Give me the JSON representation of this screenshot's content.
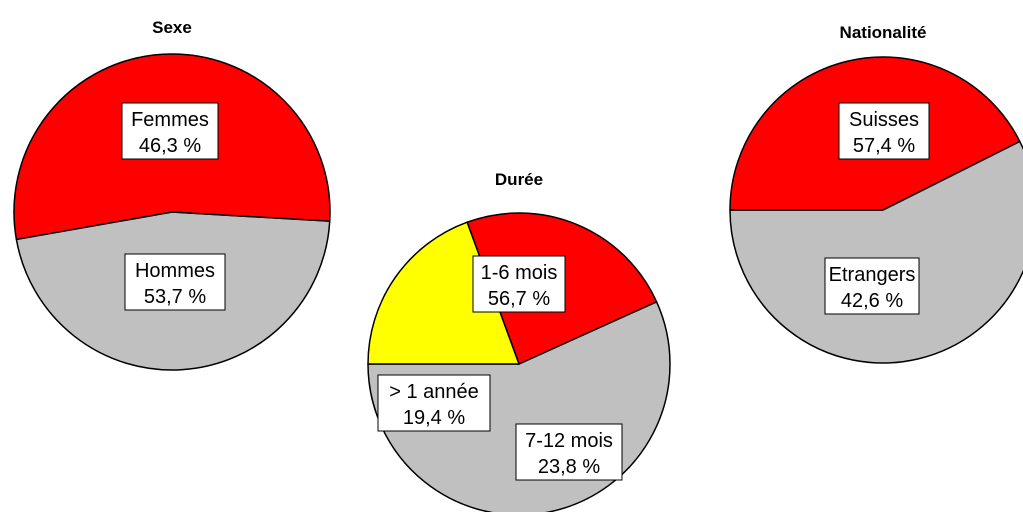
{
  "chart_data": [
    {
      "type": "pie",
      "title": "Sexe",
      "slices": [
        {
          "label": "Femmes",
          "value_text": "46,3 %",
          "value": 46.3,
          "color": "#c0c0c0"
        },
        {
          "label": "Hommes",
          "value_text": "53,7 %",
          "value": 53.7,
          "color": "#ff0000"
        }
      ]
    },
    {
      "type": "pie",
      "title": "Durée",
      "slices": [
        {
          "label": "1-6 mois",
          "value_text": "56,7 %",
          "value": 56.7,
          "color": "#c0c0c0"
        },
        {
          "label": "7-12 mois",
          "value_text": "23,8 %",
          "value": 23.8,
          "color": "#ff0000"
        },
        {
          "label": "> 1 année",
          "value_text": "19,4 %",
          "value": 19.4,
          "color": "#ffff00"
        }
      ]
    },
    {
      "type": "pie",
      "title": "Nationalité",
      "slices": [
        {
          "label": "Suisses",
          "value_text": "57,4 %",
          "value": 57.4,
          "color": "#c0c0c0"
        },
        {
          "label": "Etrangers",
          "value_text": "42,6 %",
          "value": 42.6,
          "color": "#ff0000"
        }
      ]
    }
  ]
}
